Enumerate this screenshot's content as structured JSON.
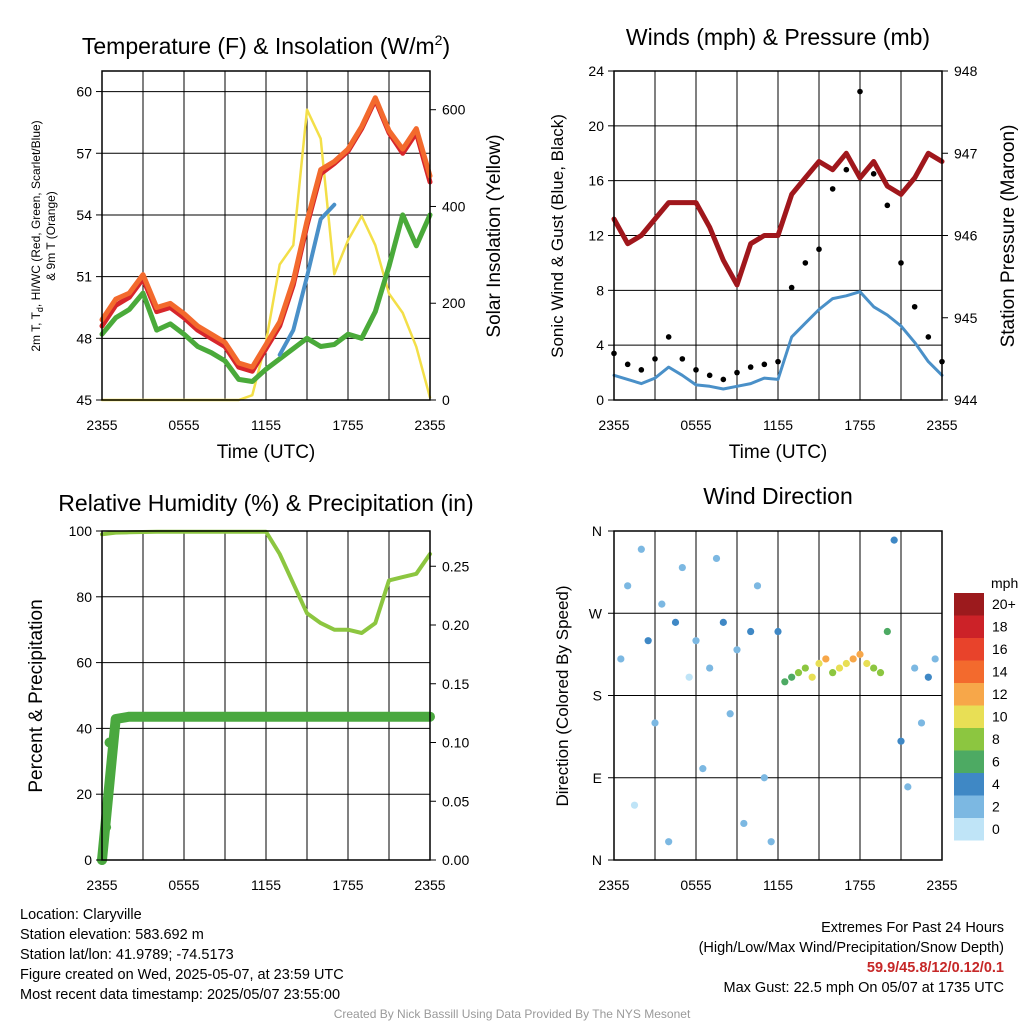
{
  "panels": {
    "temperature": {
      "title": "Temperature (F) & Insolation (W/m",
      "title_sup": "2",
      "title_close": ")",
      "ylabel_left": "2m T, T",
      "ylabel_left_sub": "d",
      "ylabel_left_rest": ", HI/WC (Red, Green, Scarlet/Blue)",
      "ylabel_left_line2": "& 9m T (Orange)",
      "ylabel_right": "Solar Insolation (Yellow)",
      "xlabel": "Time (UTC)"
    },
    "winds": {
      "title": "Winds (mph) & Pressure (mb)",
      "ylabel_left": "Sonic Wind & Gust (Blue, Black)",
      "ylabel_right": "Station Pressure (Maroon)",
      "xlabel": "Time (UTC)"
    },
    "humidity": {
      "title": "Relative Humidity (%) & Precipitation (in)",
      "ylabel_left": "Percent & Precipitation"
    },
    "direction": {
      "title": "Wind Direction",
      "ylabel_left": "Direction (Colored By Speed)",
      "legend_unit": "mph"
    }
  },
  "x_ticks": [
    "2355",
    "0555",
    "1155",
    "1755",
    "2355"
  ],
  "legend": {
    "labels": [
      "20+",
      "18",
      "16",
      "14",
      "12",
      "10",
      "8",
      "6",
      "4",
      "2",
      "0"
    ],
    "colors": [
      "#9c1a1d",
      "#cc2228",
      "#e8432b",
      "#f36a2d",
      "#f7a749",
      "#e8df55",
      "#8cc640",
      "#4daa63",
      "#3f88c5",
      "#7cb8e2",
      "#bfe4f7"
    ]
  },
  "chart_data": [
    {
      "type": "line",
      "title": "Temperature (F) & Insolation (W/m2)",
      "xlabel": "Time (UTC)",
      "ylabel": "2m T, Td, HI/WC (Red, Green, Scarlet/Blue) & 9m T (Orange)",
      "y2label": "Solar Insolation (Yellow)",
      "x": [
        0,
        1,
        2,
        3,
        4,
        5,
        6,
        7,
        8,
        9,
        10,
        11,
        12,
        13,
        14,
        15,
        16,
        17,
        18,
        19,
        20,
        21,
        22,
        23,
        24
      ],
      "xticks": [
        "2355",
        "0555",
        "1155",
        "1755",
        "2355"
      ],
      "ylim": [
        45,
        61
      ],
      "yticks": [
        45,
        48,
        51,
        54,
        57,
        60
      ],
      "y2lim": [
        0,
        680
      ],
      "y2ticks": [
        0,
        200,
        400,
        600
      ],
      "series": [
        {
          "name": "2m T",
          "color": "#d7262b",
          "values": [
            48.6,
            49.6,
            50.0,
            50.9,
            49.3,
            49.5,
            49.0,
            48.4,
            48.0,
            47.6,
            46.6,
            46.4,
            47.5,
            48.6,
            50.6,
            53.5,
            56.0,
            56.5,
            57.1,
            58.2,
            59.6,
            58.0,
            57.0,
            58.0,
            55.6
          ]
        },
        {
          "name": "9m T",
          "color": "#f36a2d",
          "values": [
            48.9,
            49.9,
            50.2,
            51.1,
            49.5,
            49.7,
            49.2,
            48.6,
            48.2,
            47.8,
            46.8,
            46.6,
            47.7,
            48.8,
            50.8,
            53.7,
            56.2,
            56.6,
            57.2,
            58.3,
            59.7,
            58.1,
            57.2,
            58.2,
            55.9
          ]
        },
        {
          "name": "Td",
          "color": "#4aaa3a",
          "values": [
            48.2,
            49.0,
            49.4,
            50.2,
            48.4,
            48.7,
            48.2,
            47.6,
            47.3,
            46.9,
            46.0,
            45.9,
            46.5,
            47.0,
            47.5,
            48.0,
            47.6,
            47.7,
            48.2,
            48.0,
            49.3,
            51.5,
            54.0,
            52.5,
            54.0
          ]
        },
        {
          "name": "HI/WC",
          "color": "#4a90c8",
          "values": [
            null,
            null,
            null,
            null,
            null,
            null,
            null,
            null,
            null,
            null,
            null,
            null,
            null,
            47.2,
            48.4,
            51.0,
            53.8,
            54.5,
            null,
            null,
            null,
            null,
            null,
            null,
            null
          ]
        },
        {
          "name": "Solar Insolation",
          "color": "#f3df48",
          "axis": "right",
          "values": [
            0,
            0,
            0,
            0,
            0,
            0,
            0,
            0,
            0,
            0,
            0,
            10,
            120,
            280,
            320,
            600,
            540,
            260,
            330,
            380,
            320,
            220,
            180,
            110,
            5
          ]
        }
      ]
    },
    {
      "type": "line",
      "title": "Winds (mph) & Pressure (mb)",
      "xlabel": "Time (UTC)",
      "ylabel": "Sonic Wind & Gust (Blue, Black)",
      "y2label": "Station Pressure (Maroon)",
      "x": [
        0,
        1,
        2,
        3,
        4,
        5,
        6,
        7,
        8,
        9,
        10,
        11,
        12,
        13,
        14,
        15,
        16,
        17,
        18,
        19,
        20,
        21,
        22,
        23,
        24
      ],
      "xticks": [
        "2355",
        "0555",
        "1155",
        "1755",
        "2355"
      ],
      "ylim": [
        0,
        24
      ],
      "yticks": [
        0,
        4,
        8,
        12,
        16,
        20,
        24
      ],
      "y2lim": [
        944,
        948
      ],
      "y2ticks": [
        944,
        945,
        946,
        947,
        948
      ],
      "series": [
        {
          "name": "Sonic Wind",
          "color": "#4a90c8",
          "values": [
            1.8,
            1.5,
            1.2,
            1.6,
            2.4,
            1.8,
            1.1,
            1.0,
            0.8,
            1.0,
            1.2,
            1.6,
            1.5,
            4.6,
            5.6,
            6.6,
            7.4,
            7.6,
            7.9,
            6.8,
            6.2,
            5.4,
            4.2,
            2.8,
            1.8
          ]
        },
        {
          "name": "Gust",
          "color": "#000000",
          "values": [
            3.4,
            2.6,
            2.2,
            3.0,
            4.6,
            3.0,
            2.2,
            1.8,
            1.5,
            2.0,
            2.4,
            2.6,
            2.8,
            8.2,
            10.0,
            11.0,
            15.4,
            16.8,
            22.5,
            16.5,
            14.2,
            10.0,
            6.8,
            4.6,
            2.8
          ]
        },
        {
          "name": "Station Pressure",
          "color": "#a0171c",
          "axis": "right",
          "values": [
            946.2,
            945.9,
            946.0,
            946.2,
            946.4,
            946.4,
            946.4,
            946.1,
            945.7,
            945.4,
            945.9,
            946.0,
            946.0,
            946.5,
            946.7,
            946.9,
            946.8,
            947.0,
            946.7,
            946.9,
            946.6,
            946.5,
            946.7,
            947.0,
            946.9
          ]
        }
      ]
    },
    {
      "type": "line",
      "title": "Relative Humidity (%) & Precipitation (in)",
      "ylabel": "Percent & Precipitation",
      "x": [
        0,
        1,
        2,
        3,
        4,
        5,
        6,
        7,
        8,
        9,
        10,
        11,
        12,
        13,
        14,
        15,
        16,
        17,
        18,
        19,
        20,
        21,
        22,
        23,
        24
      ],
      "xticks": [
        "2355",
        "0555",
        "1155",
        "1755",
        "2355"
      ],
      "ylim": [
        0,
        100
      ],
      "yticks": [
        0,
        20,
        40,
        60,
        80,
        100
      ],
      "y2lim": [
        0,
        0.28
      ],
      "y2ticks": [
        "0.00",
        "0.05",
        "0.10",
        "0.15",
        "0.20",
        "0.25"
      ],
      "series": [
        {
          "name": "Relative Humidity",
          "color": "#8cc640",
          "values": [
            99,
            99.5,
            99.6,
            99.7,
            99.8,
            99.8,
            99.8,
            99.8,
            99.8,
            99.8,
            99.8,
            99.8,
            99.8,
            93,
            84,
            75,
            72,
            70,
            70,
            69,
            72,
            85,
            86,
            87,
            93
          ]
        },
        {
          "name": "Precipitation",
          "color": "#4aa83f",
          "axis": "right",
          "values": [
            0,
            0.12,
            0.122,
            0.122,
            0.122,
            0.122,
            0.122,
            0.122,
            0.122,
            0.122,
            0.122,
            0.122,
            0.122,
            0.122,
            0.122,
            0.122,
            0.122,
            0.122,
            0.122,
            0.122,
            0.122,
            0.122,
            0.122,
            0.122,
            0.122
          ]
        }
      ]
    },
    {
      "type": "scatter",
      "title": "Wind Direction",
      "ylabel": "Direction (Colored By Speed)",
      "xticks": [
        "2355",
        "0555",
        "1155",
        "1755",
        "2355"
      ],
      "yticks": [
        "N",
        "E",
        "S",
        "W",
        "N"
      ],
      "ylim": [
        0,
        360
      ],
      "colorbar_label": "mph",
      "points_x": [
        0.5,
        1.0,
        1.5,
        2.0,
        2.5,
        3.0,
        3.5,
        4.0,
        4.5,
        5.0,
        5.5,
        6.0,
        6.5,
        7.0,
        7.5,
        8.0,
        8.5,
        9.0,
        9.5,
        10.0,
        10.5,
        11.0,
        11.5,
        12.0,
        12.5,
        13.0,
        13.5,
        14.0,
        14.5,
        15.0,
        15.5,
        16.0,
        16.5,
        17.0,
        17.5,
        18.0,
        18.5,
        19.0,
        19.5,
        20.0,
        20.5,
        21.0,
        21.5,
        22.0,
        22.5,
        23.0,
        23.5
      ],
      "points_direction": [
        220,
        300,
        60,
        340,
        240,
        150,
        280,
        20,
        260,
        320,
        200,
        240,
        100,
        210,
        330,
        260,
        160,
        230,
        40,
        250,
        300,
        90,
        20,
        250,
        195,
        200,
        205,
        210,
        200,
        215,
        220,
        205,
        210,
        215,
        220,
        225,
        215,
        210,
        205,
        250,
        350,
        130,
        80,
        210,
        150,
        200,
        220
      ],
      "points_speed": [
        1,
        2,
        0,
        1,
        3,
        1,
        2,
        1,
        3,
        1,
        0,
        2,
        1,
        1,
        2,
        3,
        1,
        2,
        1,
        3,
        1,
        2,
        1,
        4,
        5,
        6,
        7,
        8,
        10,
        9,
        12,
        8,
        10,
        9,
        11,
        12,
        9,
        8,
        7,
        5,
        4,
        3,
        2,
        2,
        1,
        3,
        2
      ]
    }
  ],
  "info_left": [
    "Location: Claryville",
    "Station elevation: 583.692 m",
    "Station lat/lon: 41.9789; -74.5173",
    "Figure created on Wed, 2025-05-07, at 23:59 UTC",
    "Most recent data timestamp: 2025/05/07 23:55:00"
  ],
  "extremes": {
    "title": "Extremes For Past 24 Hours",
    "subtitle": "(High/Low/Max Wind/Precipitation/Snow Depth)",
    "values": "59.9/45.8/12/0.12/0.1",
    "max_gust": "Max Gust: 22.5 mph On 05/07 at 1735 UTC"
  },
  "credit": "Created By Nick Bassill Using Data Provided By The NYS Mesonet"
}
